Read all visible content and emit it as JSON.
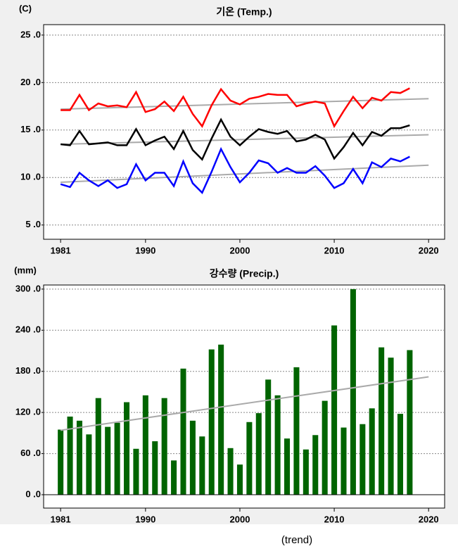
{
  "chart_data": [
    {
      "type": "line",
      "title": "기온 (Temp.)",
      "y_label": "(C)",
      "x": [
        1981,
        1982,
        1983,
        1984,
        1985,
        1986,
        1987,
        1988,
        1989,
        1990,
        1991,
        1992,
        1993,
        1994,
        1995,
        1996,
        1997,
        1998,
        1999,
        2000,
        2001,
        2002,
        2003,
        2004,
        2005,
        2006,
        2007,
        2008,
        2009,
        2010,
        2011,
        2012,
        2013,
        2014,
        2015,
        2016,
        2017,
        2018
      ],
      "series": [
        {
          "color": "#ff0000",
          "values": [
            17.1,
            17.1,
            18.7,
            17.1,
            17.8,
            17.5,
            17.6,
            17.4,
            19.0,
            16.9,
            17.2,
            18.0,
            17.0,
            18.5,
            16.7,
            15.4,
            17.6,
            19.3,
            18.1,
            17.7,
            18.3,
            18.5,
            18.8,
            18.7,
            18.7,
            17.5,
            17.8,
            18.0,
            17.8,
            15.4,
            17.0,
            18.5,
            17.3,
            18.4,
            18.1,
            19.0,
            18.9,
            19.4
          ],
          "trend": [
            17.2,
            18.3
          ]
        },
        {
          "color": "#000000",
          "values": [
            13.5,
            13.4,
            14.9,
            13.5,
            13.6,
            13.7,
            13.4,
            13.4,
            15.1,
            13.4,
            13.9,
            14.3,
            13.0,
            14.9,
            12.9,
            11.9,
            14.1,
            16.1,
            14.3,
            13.4,
            14.3,
            15.1,
            14.8,
            14.6,
            14.9,
            13.8,
            14.0,
            14.5,
            14.0,
            12.0,
            13.2,
            14.7,
            13.4,
            14.8,
            14.4,
            15.2,
            15.2,
            15.5
          ],
          "trend": [
            13.5,
            14.5
          ]
        },
        {
          "color": "#0000ff",
          "values": [
            9.3,
            9.0,
            10.5,
            9.7,
            9.1,
            9.7,
            8.9,
            9.3,
            11.4,
            9.7,
            10.5,
            10.5,
            9.1,
            11.7,
            9.4,
            8.4,
            10.6,
            13.0,
            11.1,
            9.5,
            10.5,
            11.8,
            11.5,
            10.5,
            11.0,
            10.5,
            10.5,
            11.2,
            10.2,
            8.9,
            9.4,
            10.9,
            9.4,
            11.6,
            11.1,
            12.0,
            11.7,
            12.2
          ],
          "trend": [
            9.5,
            11.3
          ]
        }
      ],
      "trend_x": [
        1981,
        2020
      ],
      "trend_color": "#aaaaaa",
      "xlim": [
        1979.2,
        2021.7
      ],
      "xticks": [
        1981,
        1990,
        2000,
        2010,
        2020
      ],
      "ylim": [
        3.5,
        26.1
      ],
      "yticks": [
        {
          "value": 5,
          "label": "5 .0"
        },
        {
          "value": 10,
          "label": "10 .0"
        },
        {
          "value": 15,
          "label": "15 .0"
        },
        {
          "value": 20,
          "label": "20 .0"
        },
        {
          "value": 25,
          "label": "25 .0"
        }
      ],
      "grid": true
    },
    {
      "type": "bar",
      "title": "강수량 (Precip.)",
      "y_label": "(mm)",
      "color": "#006400",
      "x": [
        1981,
        1982,
        1983,
        1984,
        1985,
        1986,
        1987,
        1988,
        1989,
        1990,
        1991,
        1992,
        1993,
        1994,
        1995,
        1996,
        1997,
        1998,
        1999,
        2000,
        2001,
        2002,
        2003,
        2004,
        2005,
        2006,
        2007,
        2008,
        2009,
        2010,
        2011,
        2012,
        2013,
        2014,
        2015,
        2016,
        2017,
        2018
      ],
      "values": [
        95,
        114,
        108,
        88,
        141,
        99,
        105,
        135,
        67,
        145,
        78,
        141,
        50,
        184,
        108,
        85,
        212,
        219,
        68,
        44,
        106,
        119,
        168,
        145,
        82,
        186,
        66,
        87,
        137,
        247,
        98,
        300,
        103,
        126,
        215,
        200,
        118,
        211
      ],
      "trend": [
        94,
        172
      ],
      "trend_x": [
        1981,
        2020
      ],
      "trend_color": "#aaaaaa",
      "xlim": [
        1979.2,
        2021.7
      ],
      "xticks": [
        1981,
        1990,
        2000,
        2010,
        2020
      ],
      "ylim": [
        -19.5,
        306
      ],
      "yticks": [
        {
          "value": 0,
          "label": "0 .0"
        },
        {
          "value": 60,
          "label": "60 .0"
        },
        {
          "value": 120,
          "label": "120 .0"
        },
        {
          "value": 180,
          "label": "180 .0"
        },
        {
          "value": 240,
          "label": "240 .0"
        },
        {
          "value": 300,
          "label": "300 .0"
        }
      ],
      "grid": true,
      "annotation": "(trend)"
    }
  ]
}
